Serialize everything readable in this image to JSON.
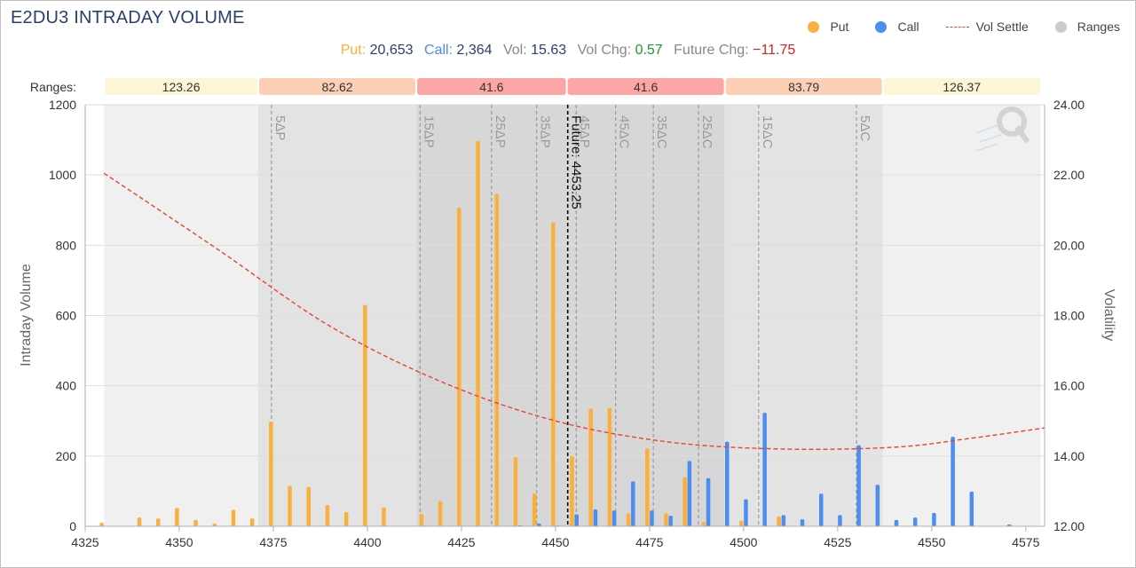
{
  "chart_data": {
    "type": "bar",
    "title": "E2DU3 INTRADAY VOLUME",
    "ylabel": "Intraday Volume",
    "y2label": "Volatility",
    "xlim": [
      4325,
      4580
    ],
    "ylim": [
      0,
      1200
    ],
    "y2lim": [
      12,
      24
    ],
    "xticks": [
      4325,
      4350,
      4375,
      4400,
      4425,
      4450,
      4475,
      4500,
      4525,
      4550,
      4575
    ],
    "yticks": [
      0,
      200,
      400,
      600,
      800,
      1000,
      1200
    ],
    "y2ticks": [
      "12.00",
      "14.00",
      "16.00",
      "18.00",
      "20.00",
      "22.00",
      "24.00"
    ],
    "grid": true,
    "legend_position": "top-right",
    "legend": [
      "Put",
      "Call",
      "Vol Settle",
      "Ranges"
    ],
    "colors": {
      "put": "#f9b03c",
      "call": "#4b8ef0",
      "vol_settle": "#e8442f",
      "future": "#000000"
    },
    "stats": {
      "put_label": "Put:",
      "put_value": "20,653",
      "call_label": "Call:",
      "call_value": "2,364",
      "vol_label": "Vol:",
      "vol_value": "15.63",
      "vol_chg_label": "Vol Chg:",
      "vol_chg_value": "0.57",
      "future_chg_label": "Future Chg:",
      "future_chg_value": "−11.75"
    },
    "ranges_label": "Ranges:",
    "ranges": [
      {
        "label": "123.26",
        "from": 4330,
        "to": 4371,
        "color": "#fdf6d6",
        "shade": "#f0f0f0"
      },
      {
        "label": "82.62",
        "from": 4371,
        "to": 4413,
        "color": "#fdd0b6",
        "shade": "#e3e3e3"
      },
      {
        "label": "41.6",
        "from": 4413,
        "to": 4453,
        "color": "#fca7a5",
        "shade": "#d7d7d7"
      },
      {
        "label": "41.6",
        "from": 4453,
        "to": 4495,
        "color": "#fca7a5",
        "shade": "#d7d7d7"
      },
      {
        "label": "83.79",
        "from": 4495,
        "to": 4537,
        "color": "#fdd0b6",
        "shade": "#e3e3e3"
      },
      {
        "label": "126.37",
        "from": 4537,
        "to": 4579,
        "color": "#fdf6d6",
        "shade": "#f0f0f0"
      }
    ],
    "delta_lines": [
      {
        "label": "5ΔP",
        "x": 4374.5
      },
      {
        "label": "15ΔP",
        "x": 4414
      },
      {
        "label": "25ΔP",
        "x": 4433
      },
      {
        "label": "35ΔP",
        "x": 4445
      },
      {
        "label": "45ΔP",
        "x": 4455.5
      },
      {
        "label": "45ΔC",
        "x": 4466
      },
      {
        "label": "35ΔC",
        "x": 4476
      },
      {
        "label": "25ΔC",
        "x": 4488
      },
      {
        "label": "15ΔC",
        "x": 4504
      },
      {
        "label": "5ΔC",
        "x": 4530
      }
    ],
    "future": {
      "label": "Future: 4453.25",
      "x": 4453.25
    },
    "series": [
      {
        "name": "Put",
        "points": [
          [
            4330,
            10
          ],
          [
            4340,
            25
          ],
          [
            4345,
            22
          ],
          [
            4350,
            52
          ],
          [
            4355,
            18
          ],
          [
            4360,
            8
          ],
          [
            4365,
            47
          ],
          [
            4370,
            22
          ],
          [
            4375,
            298
          ],
          [
            4380,
            115
          ],
          [
            4385,
            112
          ],
          [
            4390,
            60
          ],
          [
            4395,
            40
          ],
          [
            4400,
            630
          ],
          [
            4405,
            54
          ],
          [
            4415,
            35
          ],
          [
            4420,
            72
          ],
          [
            4425,
            907
          ],
          [
            4430,
            1097
          ],
          [
            4435,
            946
          ],
          [
            4440,
            197
          ],
          [
            4445,
            93
          ],
          [
            4450,
            865
          ],
          [
            4455,
            200
          ],
          [
            4460,
            335
          ],
          [
            4465,
            337
          ],
          [
            4470,
            37
          ],
          [
            4475,
            222
          ],
          [
            4480,
            37
          ],
          [
            4485,
            140
          ],
          [
            4490,
            12
          ],
          [
            4500,
            16
          ],
          [
            4510,
            28
          ]
        ]
      },
      {
        "name": "Call",
        "points": [
          [
            4440,
            3
          ],
          [
            4445,
            8
          ],
          [
            4450,
            2
          ],
          [
            4455,
            34
          ],
          [
            4460,
            48
          ],
          [
            4465,
            45
          ],
          [
            4470,
            128
          ],
          [
            4475,
            45
          ],
          [
            4480,
            30
          ],
          [
            4485,
            186
          ],
          [
            4490,
            137
          ],
          [
            4495,
            241
          ],
          [
            4500,
            77
          ],
          [
            4505,
            323
          ],
          [
            4510,
            32
          ],
          [
            4515,
            20
          ],
          [
            4520,
            93
          ],
          [
            4525,
            32
          ],
          [
            4530,
            231
          ],
          [
            4535,
            118
          ],
          [
            4540,
            18
          ],
          [
            4545,
            25
          ],
          [
            4550,
            38
          ],
          [
            4555,
            255
          ],
          [
            4560,
            99
          ],
          [
            4570,
            5
          ]
        ]
      },
      {
        "name": "Vol Settle",
        "points": [
          [
            4330,
            22.05
          ],
          [
            4360,
            19.9
          ],
          [
            4390,
            17.7
          ],
          [
            4420,
            16.1
          ],
          [
            4450,
            15.0
          ],
          [
            4480,
            14.4
          ],
          [
            4510,
            14.2
          ],
          [
            4540,
            14.25
          ],
          [
            4560,
            14.5
          ],
          [
            4580,
            14.8
          ]
        ]
      }
    ]
  }
}
